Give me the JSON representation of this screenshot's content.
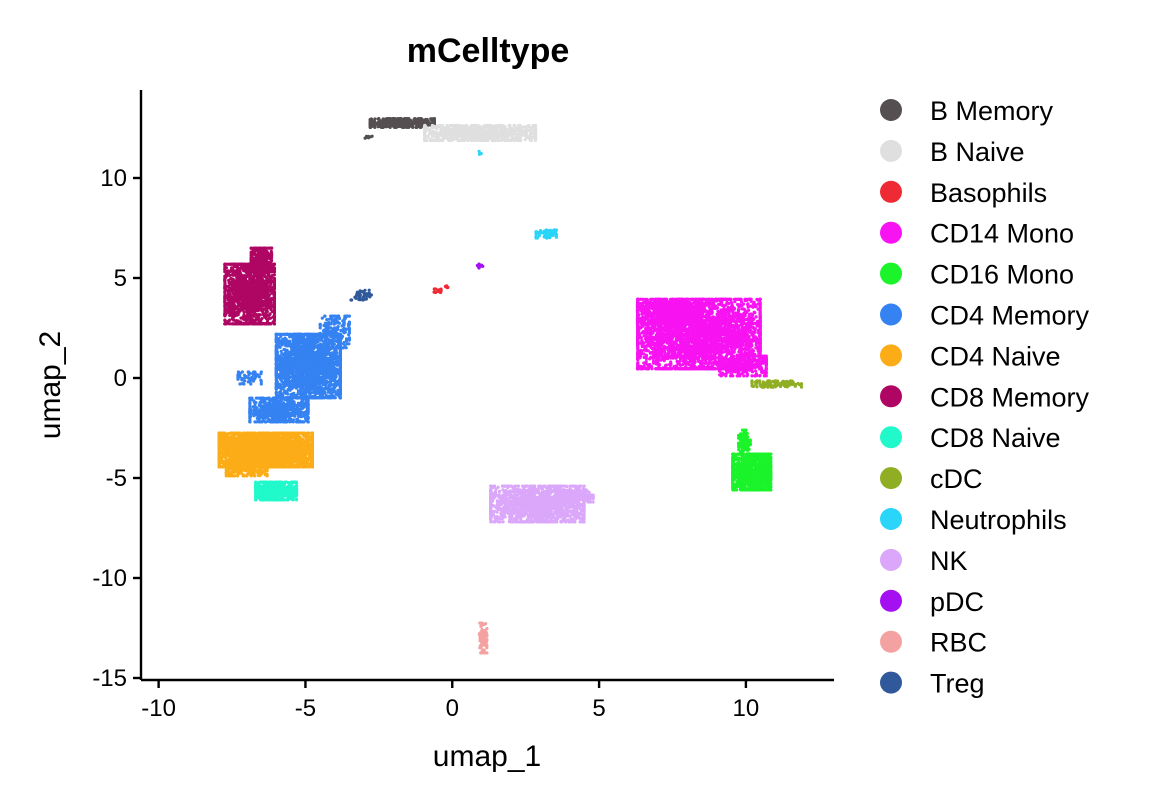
{
  "chart_data": {
    "type": "scatter",
    "title": "mCelltype",
    "xlabel": "umap_1",
    "ylabel": "umap_2",
    "xlim": [
      -10.6,
      13.0
    ],
    "ylim": [
      -15.1,
      14.4
    ],
    "x_ticks": [
      -10,
      -5,
      0,
      5,
      10
    ],
    "y_ticks": [
      -15,
      -10,
      -5,
      0,
      5,
      10
    ],
    "grid": false,
    "legend_position": "right",
    "series": [
      {
        "name": "B Memory",
        "color": "#554f51",
        "clusters": [
          {
            "cx": -1.7,
            "cy": 12.75,
            "rx": 1.1,
            "ry": 0.22,
            "n": 450
          },
          {
            "cx": -2.85,
            "cy": 12.05,
            "rx": 0.12,
            "ry": 0.1,
            "n": 10
          }
        ]
      },
      {
        "name": "B Naive",
        "color": "#e0dfe0",
        "clusters": [
          {
            "cx": 0.95,
            "cy": 12.25,
            "rx": 1.9,
            "ry": 0.38,
            "n": 900
          }
        ]
      },
      {
        "name": "Basophils",
        "color": "#ee2a34",
        "clusters": [
          {
            "cx": -0.5,
            "cy": 4.35,
            "rx": 0.12,
            "ry": 0.1,
            "n": 14
          },
          {
            "cx": -0.2,
            "cy": 4.55,
            "rx": 0.06,
            "ry": 0.1,
            "n": 6
          }
        ]
      },
      {
        "name": "CD14 Mono",
        "color": "#f813f2",
        "clusters": [
          {
            "cx": 8.4,
            "cy": 2.2,
            "rx": 2.1,
            "ry": 1.75,
            "n": 3500
          },
          {
            "cx": 7.4,
            "cy": 3.25,
            "rx": 1.1,
            "ry": 0.55,
            "n": 700
          },
          {
            "cx": 9.9,
            "cy": 0.6,
            "rx": 0.8,
            "ry": 0.5,
            "n": 300
          }
        ]
      },
      {
        "name": "CD16 Mono",
        "color": "#1bf32b",
        "clusters": [
          {
            "cx": 10.2,
            "cy": -4.7,
            "rx": 0.65,
            "ry": 0.9,
            "n": 1000
          },
          {
            "cx": 9.95,
            "cy": -3.2,
            "rx": 0.2,
            "ry": 0.6,
            "n": 100
          }
        ]
      },
      {
        "name": "CD4 Memory",
        "color": "#3582f2",
        "clusters": [
          {
            "cx": -4.9,
            "cy": 0.6,
            "rx": 1.1,
            "ry": 1.6,
            "n": 2200
          },
          {
            "cx": -5.9,
            "cy": -1.6,
            "rx": 1.0,
            "ry": 0.6,
            "n": 600
          },
          {
            "cx": -6.9,
            "cy": 0.0,
            "rx": 0.4,
            "ry": 0.3,
            "n": 60
          },
          {
            "cx": -4.0,
            "cy": 2.3,
            "rx": 0.5,
            "ry": 0.8,
            "n": 200
          }
        ]
      },
      {
        "name": "CD4 Naive",
        "color": "#fbac17",
        "clusters": [
          {
            "cx": -6.35,
            "cy": -3.6,
            "rx": 1.6,
            "ry": 0.85,
            "n": 3000
          },
          {
            "cx": -7.0,
            "cy": -4.5,
            "rx": 0.7,
            "ry": 0.4,
            "n": 300
          }
        ]
      },
      {
        "name": "CD8 Memory",
        "color": "#af0664",
        "clusters": [
          {
            "cx": -6.9,
            "cy": 4.2,
            "rx": 0.85,
            "ry": 1.5,
            "n": 1500
          },
          {
            "cx": -6.5,
            "cy": 5.9,
            "rx": 0.35,
            "ry": 0.6,
            "n": 300
          }
        ]
      },
      {
        "name": "CD8 Naive",
        "color": "#21f9cb",
        "clusters": [
          {
            "cx": -6.0,
            "cy": -5.65,
            "rx": 0.7,
            "ry": 0.45,
            "n": 500
          }
        ]
      },
      {
        "name": "cDC",
        "color": "#8fae24",
        "clusters": [
          {
            "cx": 11.05,
            "cy": -0.3,
            "rx": 0.85,
            "ry": 0.16,
            "n": 120
          }
        ]
      },
      {
        "name": "Neutrophils",
        "color": "#29d5f8",
        "clusters": [
          {
            "cx": 3.2,
            "cy": 7.2,
            "rx": 0.35,
            "ry": 0.2,
            "n": 60
          },
          {
            "cx": 0.95,
            "cy": 11.25,
            "rx": 0.05,
            "ry": 0.08,
            "n": 4
          }
        ]
      },
      {
        "name": "NK",
        "color": "#dba7fa",
        "clusters": [
          {
            "cx": 2.9,
            "cy": -6.3,
            "rx": 1.6,
            "ry": 0.9,
            "n": 1500
          },
          {
            "cx": 4.2,
            "cy": -5.9,
            "rx": 0.6,
            "ry": 0.3,
            "n": 200
          }
        ]
      },
      {
        "name": "pDC",
        "color": "#a410f1",
        "clusters": [
          {
            "cx": 0.95,
            "cy": 5.6,
            "rx": 0.1,
            "ry": 0.1,
            "n": 12
          }
        ]
      },
      {
        "name": "RBC",
        "color": "#f3a2a1",
        "clusters": [
          {
            "cx": 1.05,
            "cy": -13.0,
            "rx": 0.13,
            "ry": 0.75,
            "n": 80
          }
        ]
      },
      {
        "name": "Treg",
        "color": "#30599b",
        "clusters": [
          {
            "cx": -3.1,
            "cy": 4.15,
            "rx": 0.35,
            "ry": 0.25,
            "n": 40
          }
        ]
      }
    ]
  }
}
